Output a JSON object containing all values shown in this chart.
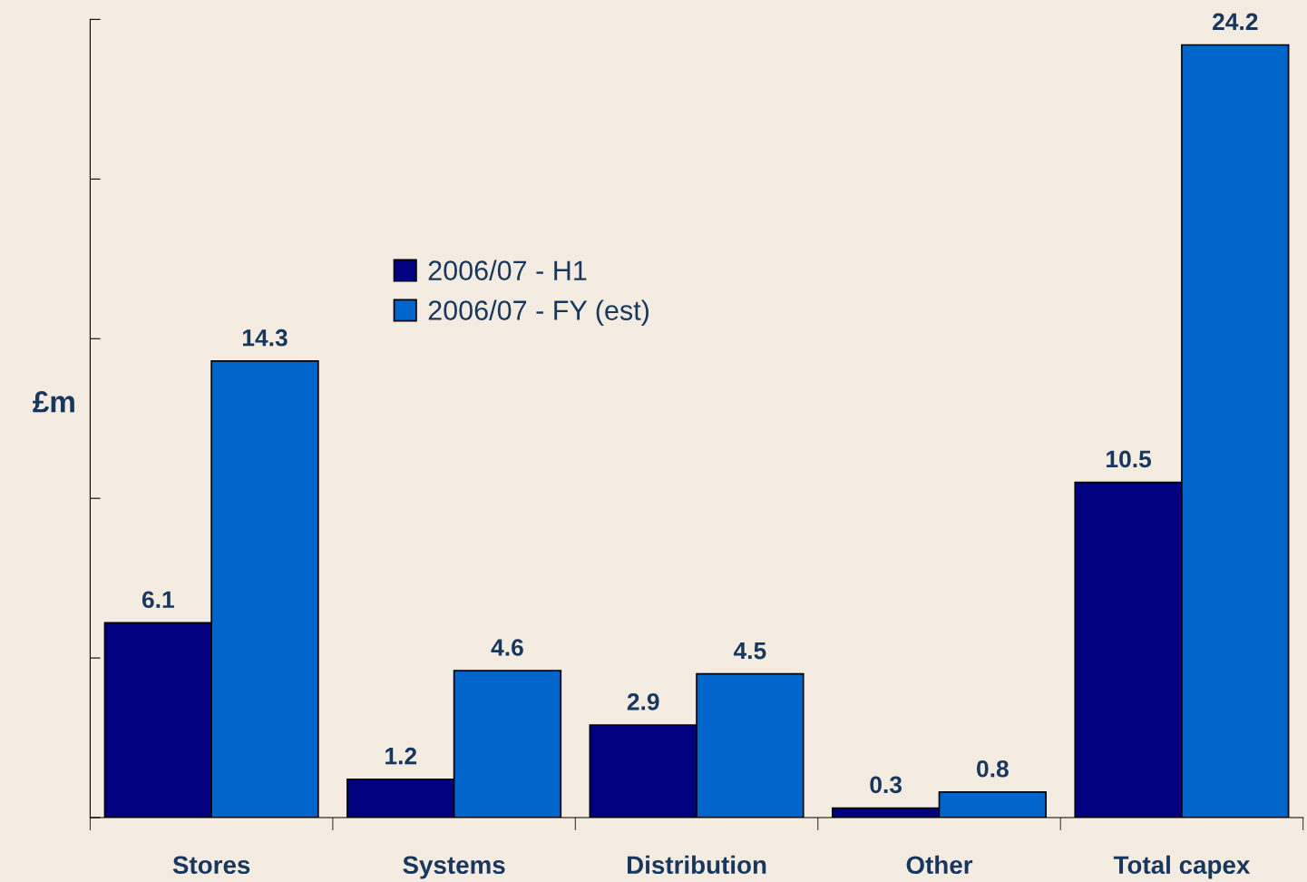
{
  "chart_data": {
    "type": "bar",
    "ylabel": "£m",
    "categories": [
      "Stores",
      "Systems",
      "Distribution",
      "Other",
      "Total capex"
    ],
    "series": [
      {
        "name": "2006/07 - H1",
        "color": "#000080",
        "values": [
          6.1,
          1.2,
          2.9,
          0.3,
          10.5
        ]
      },
      {
        "name": "2006/07 - FY (est)",
        "color": "#0066cc",
        "values": [
          14.3,
          4.6,
          4.5,
          0.8,
          24.2
        ]
      }
    ],
    "ylim": [
      0,
      25
    ],
    "yticks": [
      {
        "value": 0,
        "label": null
      },
      {
        "value": 5,
        "label": null
      },
      {
        "value": 10,
        "label": null
      },
      {
        "value": 15,
        "label": null
      },
      {
        "value": 20,
        "label": null
      },
      {
        "value": 25,
        "label": null
      }
    ],
    "tick_labels": "x",
    "data_labels": true,
    "legend": "top left",
    "grid": false
  }
}
